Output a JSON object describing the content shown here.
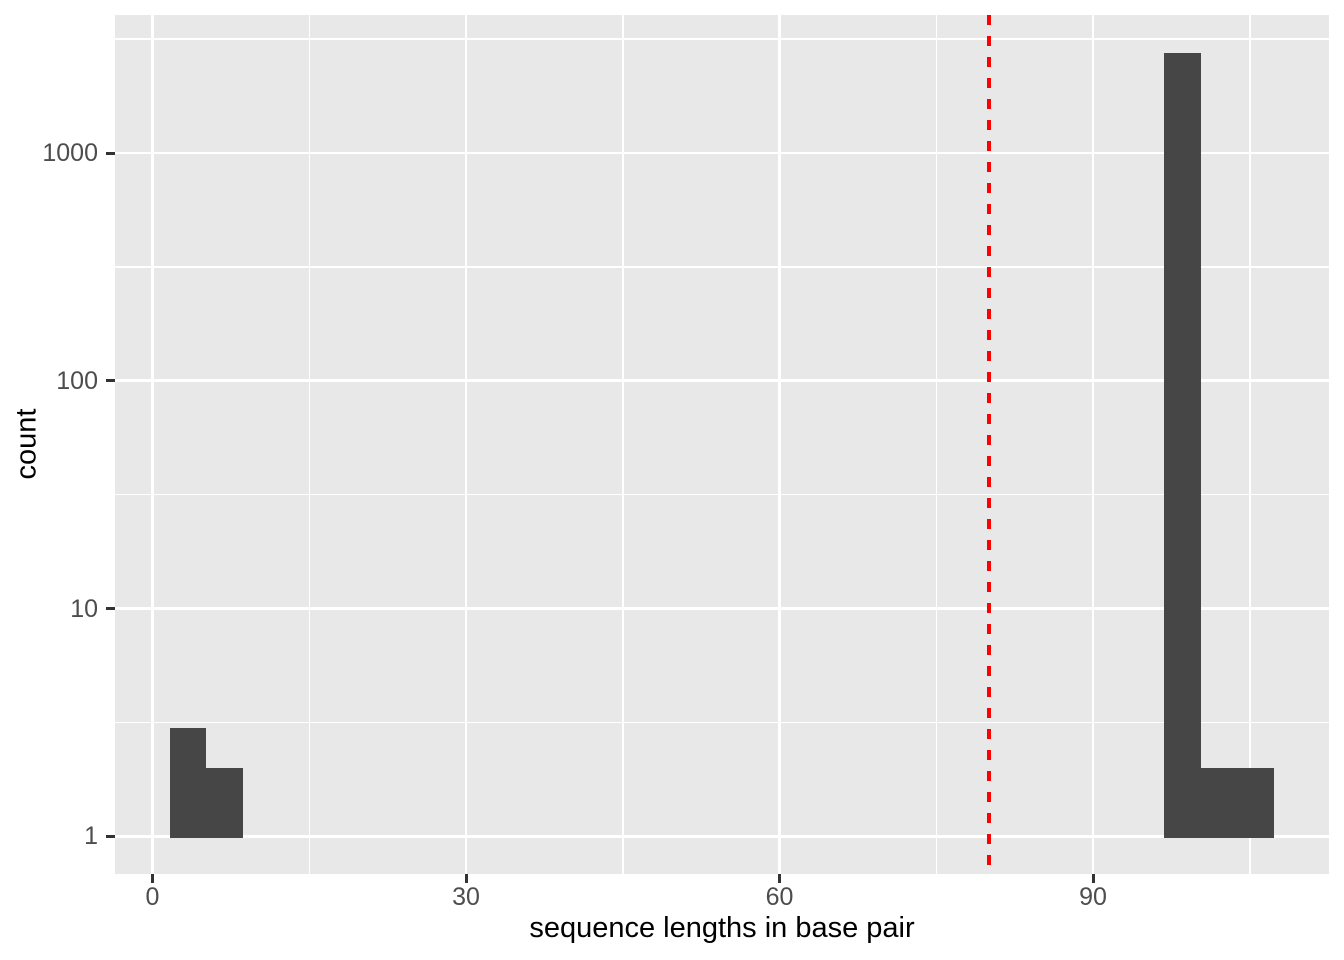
{
  "chart_data": {
    "type": "bar",
    "subtype": "histogram",
    "title": "",
    "xlabel": "sequence lengths in base pair",
    "ylabel": "count",
    "y_scale": "log10",
    "x_ticks": [
      0,
      30,
      60,
      90
    ],
    "x_tick_labels": [
      "0",
      "30",
      "60",
      "90"
    ],
    "x_minor_breaks": [
      15,
      45,
      75,
      105
    ],
    "y_ticks": [
      1,
      10,
      100,
      1000
    ],
    "y_tick_labels": [
      "1",
      "10",
      "100",
      "1000"
    ],
    "y_minor_breaks": [
      3.1623,
      31.623,
      316.23,
      3162.3
    ],
    "xlim": [
      -3.59,
      112.58
    ],
    "ylim": [
      0.684,
      4033
    ],
    "bins": [
      {
        "x0": 1.7,
        "x1": 5.1,
        "count": 3
      },
      {
        "x0": 5.1,
        "x1": 8.7,
        "count": 2
      },
      {
        "x0": 96.8,
        "x1": 100.3,
        "count": 2750
      },
      {
        "x0": 100.3,
        "x1": 103.8,
        "count": 2
      },
      {
        "x0": 103.8,
        "x1": 107.3,
        "count": 2
      }
    ],
    "vline": {
      "x": 80,
      "style": "dashed",
      "color": "#FF0000"
    },
    "bar_baseline": 1,
    "grid": true,
    "legend": false,
    "colors": {
      "bar": "#464646",
      "panel_bg": "#E8E8E8",
      "grid": "#FFFFFF",
      "axis_text": "#4D4D4D",
      "axis_title": "#000000",
      "tick_mark": "#333333",
      "background": "#FFFFFF",
      "vline": "#FF0000"
    }
  }
}
